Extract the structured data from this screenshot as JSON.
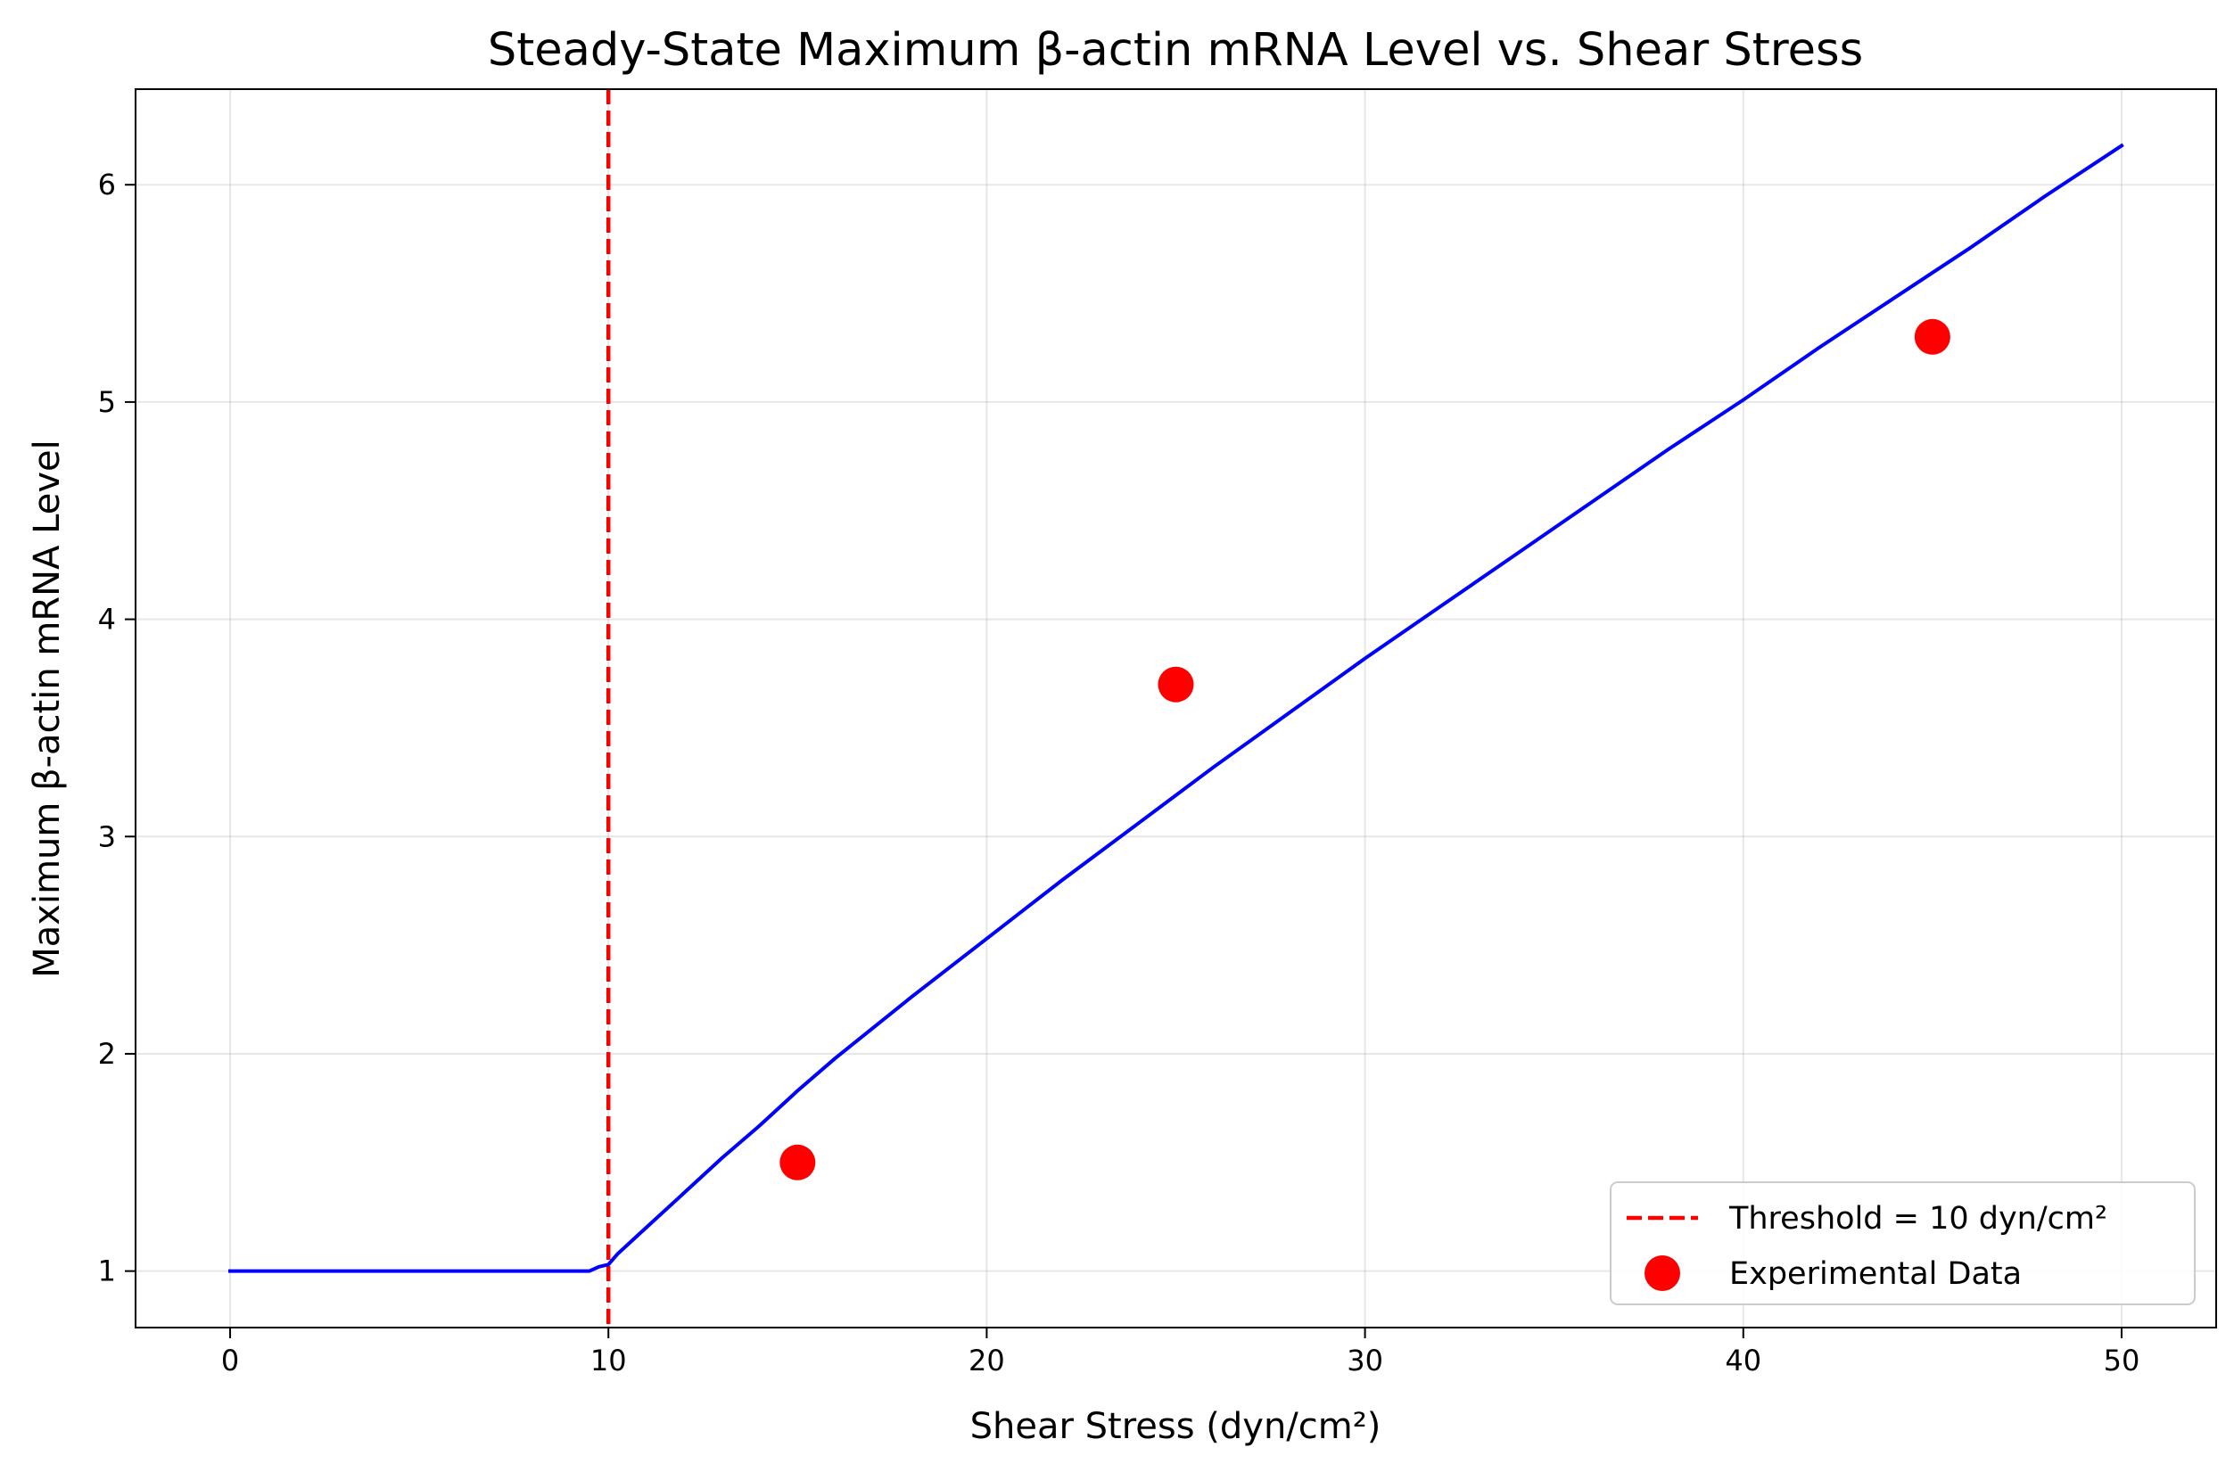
{
  "chart_data": {
    "type": "line",
    "title": "Steady-State Maximum β-actin mRNA Level vs. Shear Stress",
    "xlabel": "Shear Stress (dyn/cm²)",
    "ylabel": "Maximum β-actin mRNA Level",
    "xlim": [
      -2.5,
      52.5
    ],
    "ylim": [
      0.74,
      6.44
    ],
    "x_ticks": [
      0,
      10,
      20,
      30,
      40,
      50
    ],
    "y_ticks": [
      1,
      2,
      3,
      4,
      5,
      6
    ],
    "grid": true,
    "legend_position": "lower-right",
    "series": [
      {
        "name": "",
        "kind": "line",
        "color": "#0000ff",
        "x": [
          0,
          9.5,
          9.75,
          10,
          10.25,
          10.5,
          11,
          12,
          13,
          14,
          15,
          16,
          17,
          18,
          20,
          22,
          24,
          25,
          26,
          28,
          30,
          32,
          34,
          36,
          38,
          40,
          42,
          44,
          46,
          48,
          50
        ],
        "y": [
          1.0,
          1.0,
          1.02,
          1.03,
          1.08,
          1.12,
          1.2,
          1.36,
          1.52,
          1.67,
          1.83,
          1.98,
          2.12,
          2.26,
          2.53,
          2.8,
          3.06,
          3.19,
          3.32,
          3.57,
          3.82,
          4.06,
          4.3,
          4.54,
          4.78,
          5.01,
          5.25,
          5.48,
          5.71,
          5.95,
          6.18
        ]
      },
      {
        "name": "Threshold = 10 dyn/cm²",
        "kind": "vline",
        "color": "#ff0000",
        "x": 10
      },
      {
        "name": "Experimental Data",
        "kind": "scatter",
        "color": "#ff0000",
        "x": [
          15,
          25,
          45
        ],
        "y": [
          1.5,
          3.7,
          5.3
        ]
      }
    ]
  }
}
